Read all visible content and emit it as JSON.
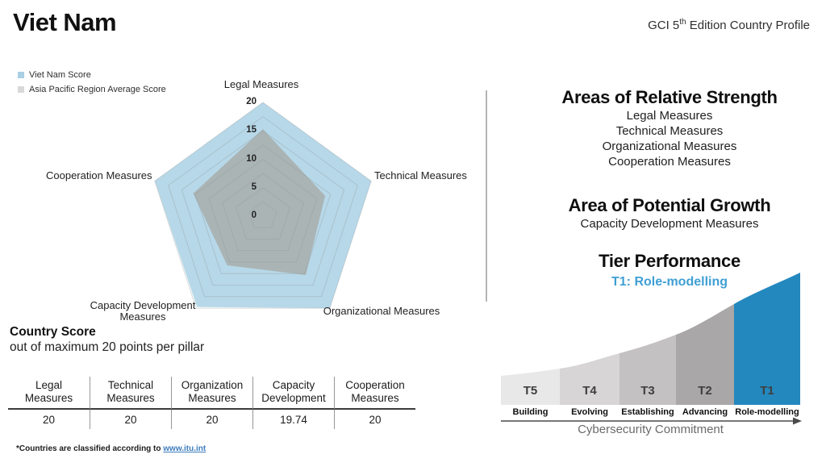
{
  "header": {
    "title": "Viet Nam",
    "edition_prefix": "GCI 5",
    "edition_sup": "th",
    "edition_suffix": " Edition Country Profile"
  },
  "legend": {
    "items": [
      {
        "label": "Viet Nam Score",
        "color": "#a9cfe4"
      },
      {
        "label": "Asia Pacific Region Average Score",
        "color": "#d8d8d8"
      }
    ]
  },
  "chart_data": [
    {
      "type": "radar",
      "axes": [
        "Legal Measures",
        "Technical Measures",
        "Organizational Measures",
        "Capacity Development Measures",
        "Cooperation Measures"
      ],
      "max": 20,
      "tick_labels": [
        20,
        15,
        10,
        5,
        0
      ],
      "grid_interval": 2.5,
      "grid_on": true,
      "series": [
        {
          "name": "Viet Nam Score",
          "values": [
            20,
            20,
            20,
            19.74,
            20
          ],
          "color": "#b7d8e8",
          "opacity": 1
        },
        {
          "name": "Asia Pacific Region Average Score",
          "values": [
            15.3,
            11.5,
            12.8,
            10.7,
            12.9
          ],
          "color": "#a8aeac",
          "opacity": 0.85
        }
      ]
    },
    {
      "type": "area",
      "subtype": "tier-steps",
      "categories": [
        "T5",
        "T4",
        "T3",
        "T2",
        "T1"
      ],
      "labels": [
        "Building",
        "Evolving",
        "Establishing",
        "Advancing",
        "Role-modelling"
      ],
      "colors": [
        "#e9e8e8",
        "#d7d5d5",
        "#c3c1c1",
        "#a9a7a7",
        "#2388be"
      ],
      "highlight_index": 4,
      "xlabel": "Cybersecurity Commitment"
    }
  ],
  "country_score": {
    "title": "Country Score",
    "subtitle": "out of maximum 20 points per pillar",
    "columns": [
      {
        "header_line1": "Legal",
        "header_line2": "Measures",
        "value": "20"
      },
      {
        "header_line1": "Technical",
        "header_line2": "Measures",
        "value": "20"
      },
      {
        "header_line1": "Organization",
        "header_line2": "Measures",
        "value": "20"
      },
      {
        "header_line1": "Capacity",
        "header_line2": "Development",
        "value": "19.74"
      },
      {
        "header_line1": "Cooperation",
        "header_line2": "Measures",
        "value": "20"
      }
    ]
  },
  "strengths": {
    "title": "Areas of Relative Strength",
    "items": [
      "Legal Measures",
      "Technical Measures",
      "Organizational Measures",
      "Cooperation Measures"
    ]
  },
  "growth": {
    "title": "Area of Potential Growth",
    "items": [
      "Capacity Development Measures"
    ]
  },
  "tier": {
    "title": "Tier Performance",
    "subtitle": "T1: Role-modelling",
    "subtitle_color": "#3f9fd4",
    "accent_color": "#2388be"
  },
  "footer": {
    "text": "*Countries are classified according to ",
    "link": "www.itu.int"
  }
}
